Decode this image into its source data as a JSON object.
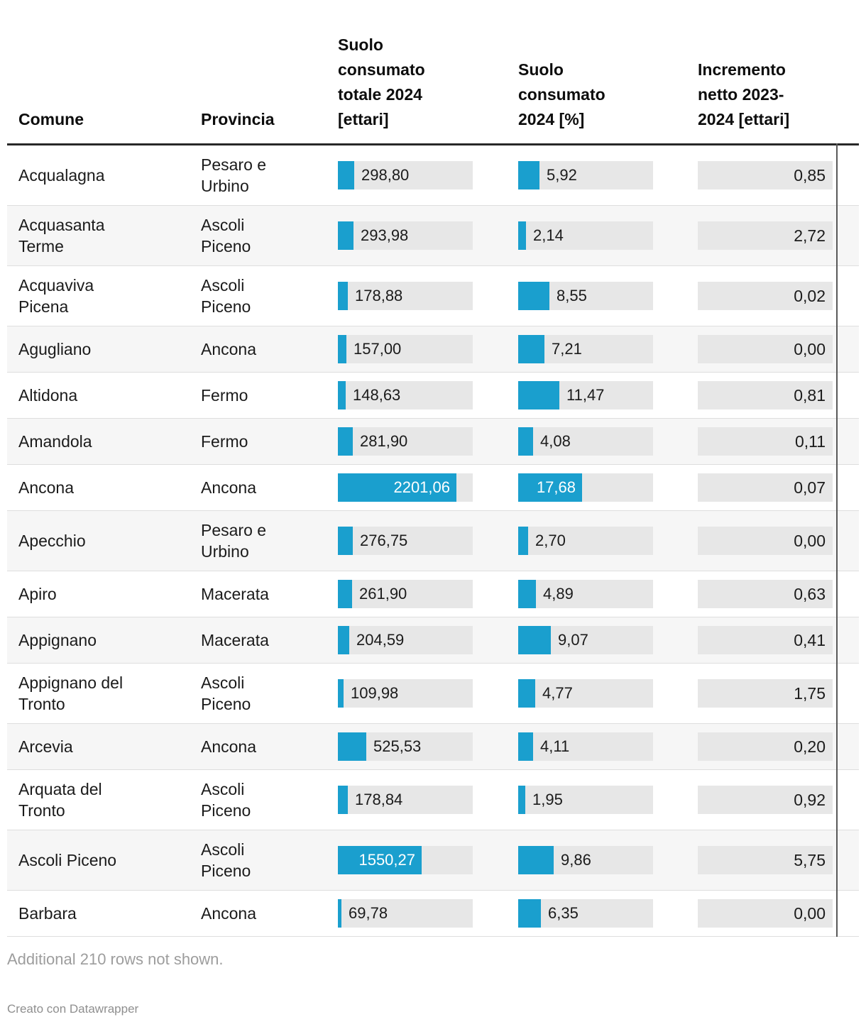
{
  "chart_data": {
    "type": "table",
    "columns": [
      "Comune",
      "Provincia",
      "Suolo consumato totale 2024 [ettari]",
      "Suolo consumato 2024 [%]",
      "Incremento netto 2023-2024 [ettari]"
    ],
    "bar_color": "#1A9FCE",
    "bar_axis": {
      "suolo_totale_max": 2500,
      "suolo_pct_max": 37.3
    },
    "rows": [
      {
        "comune": "Acqualagna",
        "provincia": "Pesaro e Urbino",
        "suolo_totale": 298.8,
        "suolo_totale_label": "298,80",
        "suolo_pct": 5.92,
        "suolo_pct_label": "5,92",
        "incremento": 0.85,
        "incremento_label": "0,85"
      },
      {
        "comune": "Acquasanta Terme",
        "provincia": "Ascoli Piceno",
        "suolo_totale": 293.98,
        "suolo_totale_label": "293,98",
        "suolo_pct": 2.14,
        "suolo_pct_label": "2,14",
        "incremento": 2.72,
        "incremento_label": "2,72"
      },
      {
        "comune": "Acquaviva Picena",
        "provincia": "Ascoli Piceno",
        "suolo_totale": 178.88,
        "suolo_totale_label": "178,88",
        "suolo_pct": 8.55,
        "suolo_pct_label": "8,55",
        "incremento": 0.02,
        "incremento_label": "0,02"
      },
      {
        "comune": "Agugliano",
        "provincia": "Ancona",
        "suolo_totale": 157.0,
        "suolo_totale_label": "157,00",
        "suolo_pct": 7.21,
        "suolo_pct_label": "7,21",
        "incremento": 0.0,
        "incremento_label": "0,00"
      },
      {
        "comune": "Altidona",
        "provincia": "Fermo",
        "suolo_totale": 148.63,
        "suolo_totale_label": "148,63",
        "suolo_pct": 11.47,
        "suolo_pct_label": "11,47",
        "incremento": 0.81,
        "incremento_label": "0,81"
      },
      {
        "comune": "Amandola",
        "provincia": "Fermo",
        "suolo_totale": 281.9,
        "suolo_totale_label": "281,90",
        "suolo_pct": 4.08,
        "suolo_pct_label": "4,08",
        "incremento": 0.11,
        "incremento_label": "0,11"
      },
      {
        "comune": "Ancona",
        "provincia": "Ancona",
        "suolo_totale": 2201.06,
        "suolo_totale_label": "2201,06",
        "suolo_pct": 17.68,
        "suolo_pct_label": "17,68",
        "incremento": 0.07,
        "incremento_label": "0,07"
      },
      {
        "comune": "Apecchio",
        "provincia": "Pesaro e Urbino",
        "suolo_totale": 276.75,
        "suolo_totale_label": "276,75",
        "suolo_pct": 2.7,
        "suolo_pct_label": "2,70",
        "incremento": 0.0,
        "incremento_label": "0,00"
      },
      {
        "comune": "Apiro",
        "provincia": "Macerata",
        "suolo_totale": 261.9,
        "suolo_totale_label": "261,90",
        "suolo_pct": 4.89,
        "suolo_pct_label": "4,89",
        "incremento": 0.63,
        "incremento_label": "0,63"
      },
      {
        "comune": "Appignano",
        "provincia": "Macerata",
        "suolo_totale": 204.59,
        "suolo_totale_label": "204,59",
        "suolo_pct": 9.07,
        "suolo_pct_label": "9,07",
        "incremento": 0.41,
        "incremento_label": "0,41"
      },
      {
        "comune": "Appignano del Tronto",
        "provincia": "Ascoli Piceno",
        "suolo_totale": 109.98,
        "suolo_totale_label": "109,98",
        "suolo_pct": 4.77,
        "suolo_pct_label": "4,77",
        "incremento": 1.75,
        "incremento_label": "1,75"
      },
      {
        "comune": "Arcevia",
        "provincia": "Ancona",
        "suolo_totale": 525.53,
        "suolo_totale_label": "525,53",
        "suolo_pct": 4.11,
        "suolo_pct_label": "4,11",
        "incremento": 0.2,
        "incremento_label": "0,20"
      },
      {
        "comune": "Arquata del Tronto",
        "provincia": "Ascoli Piceno",
        "suolo_totale": 178.84,
        "suolo_totale_label": "178,84",
        "suolo_pct": 1.95,
        "suolo_pct_label": "1,95",
        "incremento": 0.92,
        "incremento_label": "0,92"
      },
      {
        "comune": "Ascoli Piceno",
        "provincia": "Ascoli Piceno",
        "suolo_totale": 1550.27,
        "suolo_totale_label": "1550,27",
        "suolo_pct": 9.86,
        "suolo_pct_label": "9,86",
        "incremento": 5.75,
        "incremento_label": "5,75"
      },
      {
        "comune": "Barbara",
        "provincia": "Ancona",
        "suolo_totale": 69.78,
        "suolo_totale_label": "69,78",
        "suolo_pct": 6.35,
        "suolo_pct_label": "6,35",
        "incremento": 0.0,
        "incremento_label": "0,00"
      }
    ]
  },
  "footer": {
    "note": "Additional 210 rows not shown.",
    "attribution": "Creato con Datawrapper"
  }
}
